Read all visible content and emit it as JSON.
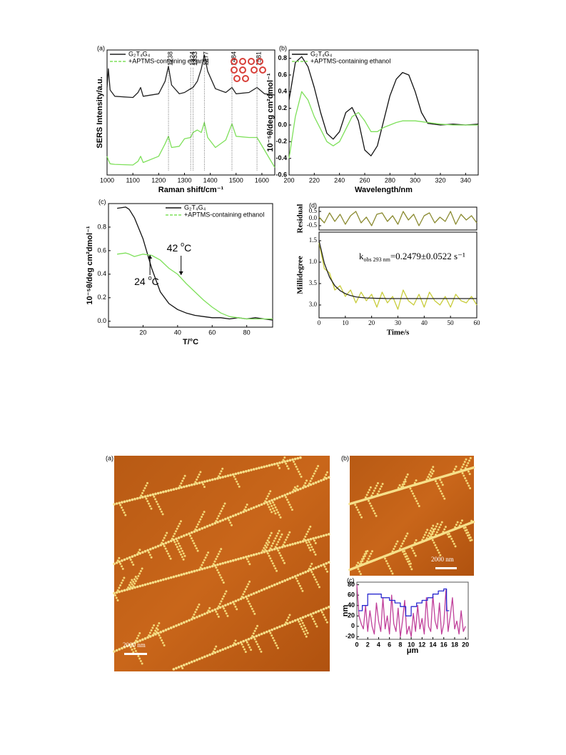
{
  "chart_data": [
    {
      "type": "line",
      "panel": "(a)",
      "xlabel": "Raman shift/cm⁻¹",
      "ylabel": "SERS Intensity/a.u.",
      "xlim": [
        1000,
        1650
      ],
      "ylim": [
        0,
        10
      ],
      "xticks": [
        1000,
        1100,
        1200,
        1300,
        1400,
        1500,
        1600
      ],
      "legend": "top-left",
      "x": [
        1000,
        1005,
        1012,
        1030,
        1100,
        1120,
        1130,
        1140,
        1200,
        1225,
        1238,
        1250,
        1280,
        1300,
        1324,
        1333,
        1350,
        1365,
        1377,
        1390,
        1420,
        1460,
        1484,
        1500,
        1550,
        1581,
        1610,
        1650
      ],
      "series": [
        {
          "name": "G₂T₄G₄",
          "color": "#222222",
          "values": [
            7.0,
            8.5,
            6.8,
            6.3,
            6.2,
            6.6,
            7.0,
            6.3,
            6.5,
            7.5,
            8.7,
            7.2,
            6.5,
            6.6,
            6.9,
            7.0,
            7.5,
            8.5,
            9.6,
            8.3,
            6.9,
            6.6,
            7.0,
            6.5,
            6.6,
            7.0,
            6.5,
            6.4
          ]
        },
        {
          "name": "+APTMS-containing ethanol",
          "color": "#7ee05a",
          "dash": true,
          "values": [
            1.5,
            1.2,
            0.9,
            0.85,
            0.8,
            1.1,
            1.5,
            1.0,
            1.5,
            2.5,
            3.1,
            2.2,
            2.3,
            2.9,
            3.0,
            3.4,
            3.6,
            3.4,
            4.2,
            3.0,
            2.2,
            2.8,
            4.1,
            3.1,
            3.0,
            3.0,
            2.0,
            0.6
          ]
        }
      ],
      "peaks": [
        1238,
        1324,
        1333,
        1377,
        1484,
        1581
      ]
    },
    {
      "type": "line",
      "panel": "(b)",
      "xlabel": "Wavelength/nm",
      "ylabel": "10⁻⁵θ/deg cm²dmol⁻¹",
      "xlim": [
        200,
        350
      ],
      "ylim": [
        -0.6,
        0.9
      ],
      "xticks": [
        200,
        220,
        240,
        260,
        280,
        300,
        320,
        340
      ],
      "yticks": [
        -0.6,
        -0.4,
        -0.2,
        {
          "value": 0,
          "label": "0.0"
        },
        0.2,
        0.4,
        0.6,
        0.8
      ],
      "legend": "top-left",
      "x": [
        200,
        205,
        210,
        215,
        220,
        225,
        230,
        235,
        240,
        245,
        250,
        255,
        260,
        265,
        270,
        275,
        280,
        285,
        290,
        295,
        300,
        305,
        310,
        320,
        330,
        340,
        350
      ],
      "series": [
        {
          "name": "G₂T₄G₄",
          "color": "#111111",
          "values": [
            0.3,
            0.75,
            0.82,
            0.7,
            0.45,
            0.15,
            -0.1,
            -0.17,
            -0.08,
            0.15,
            0.21,
            0.05,
            -0.3,
            -0.37,
            -0.25,
            0.05,
            0.35,
            0.55,
            0.63,
            0.6,
            0.4,
            0.15,
            0.02,
            0.0,
            0.01,
            0.0,
            0.01
          ]
        },
        {
          "name": "+APTMS-containing ethanol",
          "color": "#7ee05a",
          "dash": true,
          "values": [
            -0.4,
            0.1,
            0.4,
            0.3,
            0.1,
            -0.05,
            -0.2,
            -0.25,
            -0.2,
            -0.05,
            0.1,
            0.15,
            0.05,
            -0.08,
            -0.08,
            -0.03,
            0.0,
            0.03,
            0.05,
            0.05,
            0.05,
            0.04,
            0.03,
            0.01,
            0.0,
            0.0,
            0.0
          ]
        }
      ]
    },
    {
      "type": "line",
      "panel": "(c)",
      "xlabel": "T/°C",
      "ylabel": "10⁻⁵θ/deg cm²dmol⁻¹",
      "xlim": [
        0,
        95
      ],
      "ylim": [
        -0.05,
        1.0
      ],
      "xticks": [
        20,
        40,
        60,
        80
      ],
      "yticks": [
        {
          "value": 0,
          "label": "0.0"
        },
        0.2,
        0.4,
        0.6,
        0.8
      ],
      "legend": "top-right",
      "x": [
        5,
        10,
        12,
        15,
        20,
        25,
        30,
        35,
        40,
        45,
        50,
        55,
        60,
        65,
        70,
        75,
        80,
        85,
        90,
        95
      ],
      "series": [
        {
          "name": "G₂T₄G₄",
          "color": "#111111",
          "values": [
            0.96,
            0.97,
            0.95,
            0.88,
            0.7,
            0.45,
            0.25,
            0.15,
            0.1,
            0.07,
            0.05,
            0.04,
            0.03,
            0.03,
            0.02,
            0.03,
            0.02,
            0.03,
            0.02,
            0.01
          ]
        },
        {
          "name": "+APTMS-containing ethanol",
          "color": "#7ee05a",
          "dash": true,
          "values": [
            0.57,
            0.58,
            0.57,
            0.55,
            0.57,
            0.56,
            0.52,
            0.45,
            0.4,
            0.32,
            0.25,
            0.18,
            0.12,
            0.07,
            0.04,
            0.03,
            0.02,
            0.02,
            0.02,
            0.02
          ]
        }
      ],
      "annotations": [
        {
          "x": 24,
          "text": [
            "24 ",
            "o",
            "C"
          ]
        },
        {
          "x": 42,
          "text": [
            "42 ",
            "o",
            "C"
          ]
        }
      ]
    },
    {
      "type": "line",
      "panel": "(d)",
      "ylabel": "Residual",
      "xlim": [
        0,
        60
      ],
      "ylim": [
        -0.8,
        0.8
      ],
      "yticks": [
        0.5,
        {
          "value": 0,
          "label": "0.0"
        },
        -0.5
      ],
      "x": [
        0,
        2,
        4,
        6,
        8,
        10,
        12,
        14,
        16,
        18,
        20,
        22,
        24,
        26,
        28,
        30,
        32,
        34,
        36,
        38,
        40,
        42,
        44,
        46,
        48,
        50,
        52,
        54,
        56,
        58,
        60
      ],
      "series": [
        {
          "color": "#8a8a30",
          "values": [
            0.1,
            -0.3,
            0.4,
            -0.2,
            0.3,
            -0.4,
            0.2,
            0.5,
            -0.3,
            0.1,
            -0.5,
            0.3,
            0.4,
            -0.2,
            0.2,
            -0.4,
            0.5,
            -0.1,
            0.3,
            -0.5,
            0.2,
            0.4,
            -0.3,
            0.1,
            -0.2,
            0.5,
            -0.4,
            0.3,
            -0.1,
            0.2,
            -0.3
          ]
        }
      ]
    },
    {
      "type": "line",
      "xlabel": "Time/s",
      "ylabel": "Millidegree",
      "xlim": [
        0,
        60
      ],
      "ylim": [
        0,
        4
      ],
      "xticks": [
        0,
        10,
        20,
        30,
        40,
        50,
        60
      ],
      "yticks": [
        {
          "value": 3.6,
          "label": "1.5"
        },
        {
          "value": 2.6,
          "label": "1.0"
        },
        {
          "value": 1.6,
          "label": "3.5"
        },
        {
          "value": 0.6,
          "label": "3.0"
        }
      ],
      "x": [
        0,
        2,
        4,
        6,
        8,
        10,
        12,
        14,
        16,
        18,
        20,
        22,
        24,
        26,
        28,
        30,
        32,
        34,
        36,
        38,
        40,
        42,
        44,
        46,
        48,
        50,
        52,
        54,
        56,
        58,
        60
      ],
      "series": [
        {
          "color": "#c8cc3a",
          "values": [
            3.5,
            2.3,
            2.1,
            1.3,
            1.5,
            1.0,
            1.3,
            0.7,
            1.2,
            0.8,
            1.1,
            0.5,
            1.2,
            0.7,
            1.0,
            0.4,
            1.3,
            0.8,
            0.6,
            1.1,
            0.5,
            1.2,
            0.8,
            0.6,
            1.0,
            0.5,
            1.1,
            0.8,
            0.7,
            1.0,
            0.6
          ]
        },
        {
          "color": "#222222",
          "values": [
            3.6,
            2.55,
            1.9,
            1.5,
            1.27,
            1.13,
            1.04,
            0.98,
            0.95,
            0.93,
            0.92,
            0.91,
            0.91,
            0.9,
            0.9,
            0.9,
            0.9,
            0.9,
            0.9,
            0.9,
            0.9,
            0.9,
            0.9,
            0.9,
            0.9,
            0.9,
            0.9,
            0.9,
            0.9,
            0.9,
            0.9
          ]
        }
      ],
      "fit_text": [
        "k",
        "obs 293 nm",
        "=0.2479±0.0522 s⁻¹"
      ]
    },
    {
      "type": "line",
      "panel": "(c)",
      "xlabel": "μm",
      "ylabel": "nm",
      "xlim": [
        0,
        20.5
      ],
      "ylim": [
        -25,
        85
      ],
      "xticks": [
        0,
        2,
        4,
        6,
        8,
        10,
        12,
        14,
        16,
        18,
        20
      ],
      "yticks": [
        -20,
        0,
        20,
        40,
        60,
        80
      ],
      "series": [
        {
          "color": "#c0409a",
          "x": [
            0,
            0.4,
            0.8,
            1.2,
            1.6,
            2,
            2.4,
            2.8,
            3.2,
            3.6,
            4,
            4.4,
            4.8,
            5.2,
            5.6,
            6,
            6.4,
            6.8,
            7.2,
            7.6,
            8,
            8.4,
            8.8,
            9.2,
            9.6,
            10,
            10.4,
            10.8,
            11.2,
            11.6,
            12,
            12.4,
            12.8,
            13.2,
            13.6,
            14,
            14.4,
            14.8,
            15.2,
            15.6,
            16,
            16.4,
            16.8,
            17.2,
            17.6,
            18,
            18.4,
            18.8,
            19.2,
            19.6,
            20
          ],
          "values": [
            80,
            20,
            5,
            -5,
            40,
            -10,
            30,
            0,
            -15,
            45,
            10,
            -10,
            55,
            -5,
            20,
            -15,
            60,
            5,
            -10,
            35,
            -20,
            10,
            50,
            -15,
            0,
            -20,
            25,
            -10,
            40,
            -5,
            15,
            -15,
            55,
            0,
            -10,
            60,
            10,
            -5,
            45,
            -15,
            5,
            70,
            -10,
            20,
            55,
            -5,
            10,
            -15,
            30,
            -10,
            0
          ]
        },
        {
          "color": "#2a2ad0",
          "x": [
            0.3,
            1,
            1,
            2,
            2,
            4.5,
            4.5,
            6,
            6,
            7,
            7,
            8,
            8,
            9,
            9,
            10,
            10,
            11,
            11,
            12,
            12,
            13,
            13,
            14,
            14,
            15,
            15,
            16,
            16,
            16.5,
            16.5,
            17
          ],
          "values": [
            30,
            30,
            40,
            40,
            62,
            62,
            55,
            55,
            50,
            50,
            45,
            45,
            38,
            38,
            20,
            20,
            38,
            38,
            45,
            45,
            50,
            50,
            55,
            55,
            62,
            62,
            68,
            68,
            72,
            72,
            30,
            30
          ]
        }
      ]
    }
  ],
  "images": [
    {
      "panel": "(a)",
      "scale_bar": "2000 nm"
    },
    {
      "panel": "(b)",
      "scale_bar": "2000 nm"
    }
  ]
}
